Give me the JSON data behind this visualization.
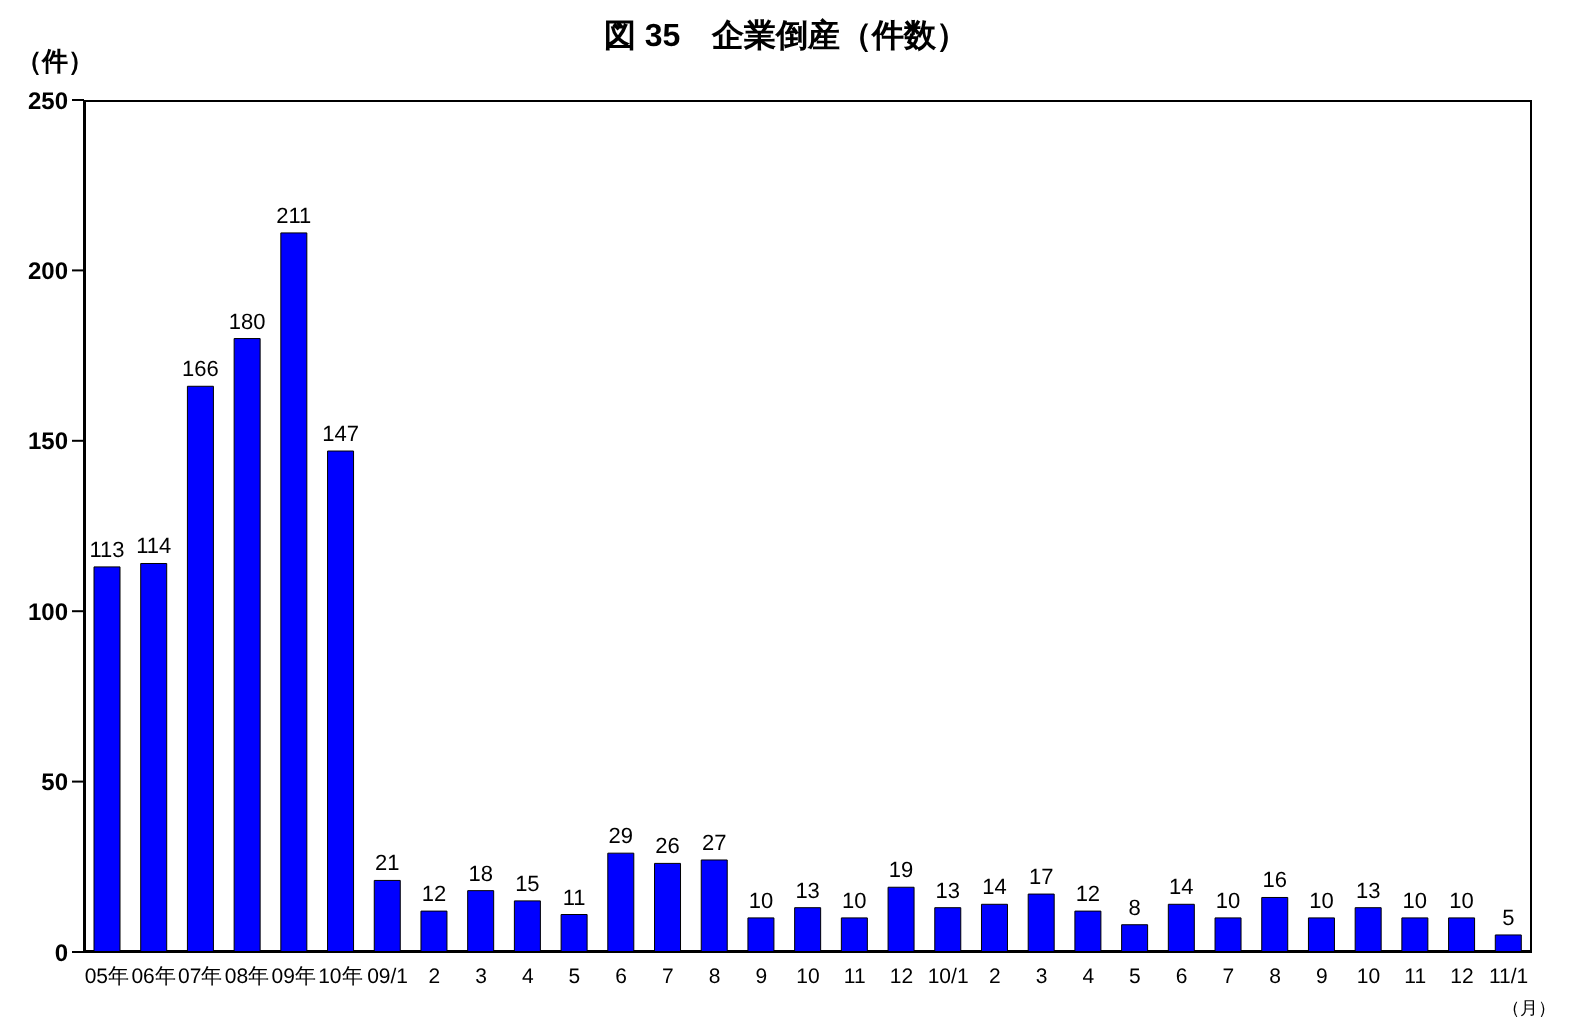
{
  "chart_data": {
    "type": "bar",
    "title": "図 35　企業倒産（件数）",
    "ylabel": "（件）",
    "annotations": [
      "（月）"
    ],
    "categories": [
      "05年",
      "06年",
      "07年",
      "08年",
      "09年",
      "10年",
      "09/1",
      "2",
      "3",
      "4",
      "5",
      "6",
      "7",
      "8",
      "9",
      "10",
      "11",
      "12",
      "10/1",
      "2",
      "3",
      "4",
      "5",
      "6",
      "7",
      "8",
      "9",
      "10",
      "11",
      "12",
      "11/1"
    ],
    "values": [
      113,
      114,
      166,
      180,
      211,
      147,
      21,
      12,
      18,
      15,
      11,
      29,
      26,
      27,
      10,
      13,
      10,
      19,
      13,
      14,
      17,
      12,
      8,
      14,
      10,
      16,
      10,
      13,
      10,
      10,
      5
    ],
    "color": "#0000ff",
    "ylim": [
      0,
      250
    ],
    "yticks": [
      0,
      50,
      100,
      150,
      200,
      250
    ],
    "data_labels": true,
    "grid": false
  }
}
